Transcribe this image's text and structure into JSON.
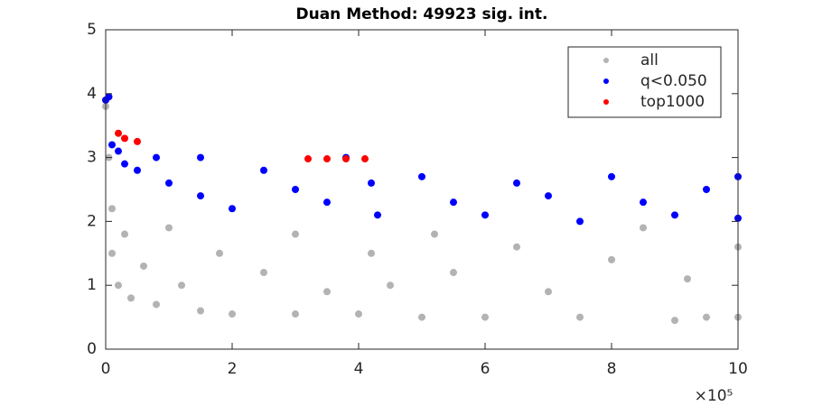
{
  "chart_data": {
    "type": "scatter",
    "title": "Duan Method: 49923 sig. int.",
    "x_exponent_label": "×10⁵",
    "xlim": [
      0,
      1000000
    ],
    "xticks": [
      {
        "value": 0,
        "label": "0"
      },
      {
        "value": 200000,
        "label": "2"
      },
      {
        "value": 400000,
        "label": "4"
      },
      {
        "value": 600000,
        "label": "6"
      },
      {
        "value": 800000,
        "label": "8"
      },
      {
        "value": 1000000,
        "label": "10"
      }
    ],
    "ylim": [
      0,
      5
    ],
    "yticks": [
      0,
      1,
      2,
      3,
      4,
      5
    ],
    "grid": false,
    "legend": "northeast",
    "series": [
      {
        "name": "all",
        "color": "#b3b3b3",
        "x": [
          0,
          5000,
          10000,
          10000,
          20000,
          30000,
          40000,
          60000,
          80000,
          100000,
          120000,
          150000,
          180000,
          200000,
          250000,
          300000,
          300000,
          350000,
          400000,
          420000,
          450000,
          500000,
          520000,
          550000,
          600000,
          650000,
          700000,
          750000,
          800000,
          850000,
          900000,
          920000,
          950000,
          1000000,
          1000000
        ],
        "y": [
          3.8,
          3.0,
          2.2,
          1.5,
          1.0,
          1.8,
          0.8,
          1.3,
          0.7,
          1.9,
          1.0,
          0.6,
          1.5,
          0.55,
          1.2,
          0.55,
          1.8,
          0.9,
          0.55,
          1.5,
          1.0,
          0.5,
          1.8,
          1.2,
          0.5,
          1.6,
          0.9,
          0.5,
          1.4,
          1.9,
          0.45,
          1.1,
          0.5,
          1.6,
          0.5
        ]
      },
      {
        "name": "q<0.050",
        "color": "#0000ff",
        "x": [
          0,
          5000,
          10000,
          20000,
          30000,
          50000,
          80000,
          100000,
          150000,
          150000,
          200000,
          250000,
          300000,
          350000,
          380000,
          420000,
          430000,
          500000,
          550000,
          600000,
          650000,
          700000,
          750000,
          800000,
          850000,
          900000,
          950000,
          1000000,
          1000000
        ],
        "y": [
          3.9,
          3.95,
          3.2,
          3.1,
          2.9,
          2.8,
          3.0,
          2.6,
          2.4,
          3.0,
          2.2,
          2.8,
          2.5,
          2.3,
          3.0,
          2.6,
          2.1,
          2.7,
          2.3,
          2.1,
          2.6,
          2.4,
          2.0,
          2.7,
          2.3,
          2.1,
          2.5,
          2.7,
          2.05
        ]
      },
      {
        "name": "top1000",
        "color": "#ff0000",
        "x": [
          20000,
          30000,
          50000,
          320000,
          350000,
          380000,
          410000
        ],
        "y": [
          3.38,
          3.3,
          3.25,
          2.98,
          2.98,
          2.98,
          2.98
        ]
      }
    ]
  }
}
